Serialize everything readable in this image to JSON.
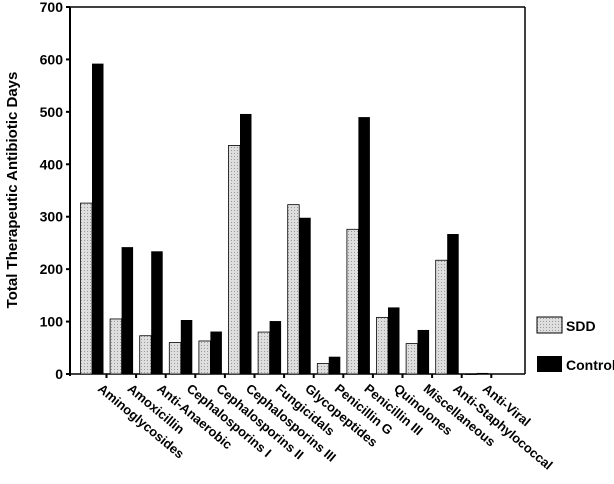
{
  "chart_data": {
    "type": "bar",
    "title": "",
    "xlabel": "",
    "ylabel": "Total Therapeutic Antibiotic Days",
    "ylim": [
      0,
      700
    ],
    "yticks": [
      0,
      100,
      200,
      300,
      400,
      500,
      600,
      700
    ],
    "grid": false,
    "legend_position": "right",
    "categories": [
      "Aminoglycosides",
      "Amoxicillin",
      "Anti-Anaerobic",
      "Cephalosporins I",
      "Cephalosporins II",
      "Cephalosporins III",
      "Fungicidals",
      "Glycopeptides",
      "Penicillin G",
      "Penicillin III",
      "Quinolones",
      "Miscellaneous",
      "Anti-Staphylococcal",
      "Anti-Viral"
    ],
    "series": [
      {
        "name": "SDD",
        "color": "#d4d4d4",
        "values": [
          326,
          105,
          73,
          60,
          63,
          436,
          80,
          323,
          20,
          276,
          108,
          58,
          217,
          0
        ]
      },
      {
        "name": "Control",
        "color": "#000000",
        "values": [
          592,
          242,
          234,
          103,
          81,
          496,
          101,
          298,
          33,
          490,
          127,
          84,
          267,
          2
        ]
      }
    ]
  }
}
